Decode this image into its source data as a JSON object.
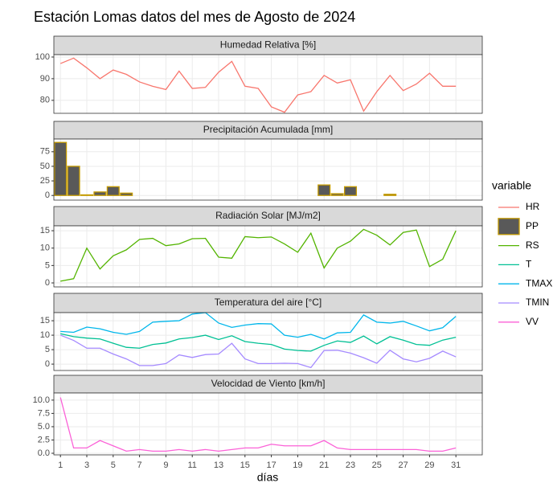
{
  "title": "Estación Lomas datos del mes de Agosto de 2024",
  "xlabel": "días",
  "legend_title": "variable",
  "chart_data": [
    {
      "type": "line",
      "title": "Humedad Relativa [%]",
      "x": [
        1,
        2,
        3,
        4,
        5,
        6,
        7,
        8,
        9,
        10,
        11,
        12,
        13,
        14,
        15,
        16,
        17,
        18,
        19,
        20,
        21,
        22,
        23,
        24,
        25,
        26,
        27,
        28,
        29,
        30,
        31
      ],
      "xlim": [
        0.5,
        33
      ],
      "ylim": [
        74,
        101.1
      ],
      "yticks": [
        80,
        90,
        100
      ],
      "series": [
        {
          "name": "HR",
          "color": "#F8766D",
          "values": [
            97,
            99.5,
            95,
            90,
            94,
            92,
            88.5,
            86.5,
            85,
            93.5,
            85.5,
            86,
            93,
            98,
            86.5,
            85.5,
            77,
            74.5,
            82.5,
            84,
            91.5,
            88,
            89.5,
            75,
            84,
            91.5,
            84.5,
            87.5,
            92.5,
            86.5,
            86.5
          ]
        }
      ]
    },
    {
      "type": "bar",
      "title": "Precipitación Acumulada [mm]",
      "x": [
        1,
        2,
        3,
        4,
        5,
        6,
        7,
        8,
        9,
        10,
        11,
        12,
        13,
        14,
        15,
        16,
        17,
        18,
        19,
        20,
        21,
        22,
        23,
        24,
        25,
        26,
        27,
        28,
        29,
        30,
        31
      ],
      "xlim": [
        0.5,
        33
      ],
      "ylim": [
        -8,
        96.8
      ],
      "yticks": [
        0,
        25,
        50,
        75
      ],
      "series": [
        {
          "name": "PP",
          "color": "#C49A00",
          "values": [
            91,
            50,
            1,
            6,
            15,
            4,
            0,
            0,
            0,
            0,
            0,
            0,
            0,
            0,
            0,
            0,
            0,
            0,
            0,
            0,
            18,
            3,
            15,
            0,
            0,
            2,
            0,
            0,
            0,
            0,
            0
          ]
        }
      ]
    },
    {
      "type": "line",
      "title": "Radiación Solar [MJ/m2]",
      "x": [
        1,
        2,
        3,
        4,
        5,
        6,
        7,
        8,
        9,
        10,
        11,
        12,
        13,
        14,
        15,
        16,
        17,
        18,
        19,
        20,
        21,
        22,
        23,
        24,
        25,
        26,
        27,
        28,
        29,
        30,
        31
      ],
      "xlim": [
        0.5,
        33
      ],
      "ylim": [
        -1.15,
        16.4
      ],
      "yticks": [
        0,
        5,
        10,
        15
      ],
      "series": [
        {
          "name": "RS",
          "color": "#53B400",
          "values": [
            0.5,
            1.2,
            10,
            4,
            7.8,
            9.5,
            12.5,
            12.8,
            10.7,
            11.2,
            12.7,
            12.8,
            7.4,
            7.1,
            13.3,
            13,
            13.2,
            11.2,
            8.8,
            14.3,
            4.3,
            10,
            12,
            15.4,
            13.7,
            10.9,
            14.5,
            15.2,
            4.7,
            6.8,
            15
          ]
        }
      ]
    },
    {
      "type": "line",
      "title": "Temperatura del aire [°C]",
      "x": [
        1,
        2,
        3,
        4,
        5,
        6,
        7,
        8,
        9,
        10,
        11,
        12,
        13,
        14,
        15,
        16,
        17,
        18,
        19,
        20,
        21,
        22,
        23,
        24,
        25,
        26,
        27,
        28,
        29,
        30,
        31
      ],
      "xlim": [
        0.5,
        33
      ],
      "ylim": [
        -2.2,
        17.8
      ],
      "yticks": [
        0,
        5,
        10,
        15
      ],
      "series": [
        {
          "name": "T",
          "color": "#00C094",
          "values": [
            10.5,
            9.5,
            9,
            8.7,
            7.2,
            5.8,
            5.5,
            6.8,
            7.3,
            8.7,
            9.2,
            10,
            8.5,
            9.8,
            7.8,
            7.2,
            6.8,
            5.2,
            4.7,
            4.5,
            6.5,
            8,
            7.5,
            9.7,
            7,
            9.5,
            8.3,
            6.8,
            6.5,
            8.3,
            9.3
          ]
        },
        {
          "name": "TMAX",
          "color": "#00B6EB",
          "values": [
            11.3,
            11,
            12.8,
            12.2,
            11,
            10.3,
            11.3,
            14.5,
            14.8,
            15,
            17.3,
            17.8,
            14.2,
            12.7,
            13.5,
            14,
            13.9,
            10,
            9.3,
            10.3,
            8.7,
            10.8,
            11,
            17,
            14.5,
            14.2,
            14.8,
            13.2,
            11.5,
            12.6,
            16.5
          ]
        },
        {
          "name": "TMIN",
          "color": "#A58AFF",
          "values": [
            10,
            8.2,
            5.5,
            5.5,
            3.5,
            1.8,
            -0.5,
            -0.5,
            0.2,
            3.2,
            2.3,
            3.3,
            3.5,
            7.2,
            1.8,
            0.2,
            0.2,
            0.3,
            0.2,
            -1.2,
            4.7,
            4.8,
            3.8,
            2.2,
            0.3,
            4.8,
            1.8,
            0.8,
            2,
            4.5,
            2.5
          ]
        }
      ]
    },
    {
      "type": "line",
      "title": "Velocidad de Viento [km/h]",
      "x": [
        1,
        2,
        3,
        4,
        5,
        6,
        7,
        8,
        9,
        10,
        11,
        12,
        13,
        14,
        15,
        16,
        17,
        18,
        19,
        20,
        21,
        22,
        23,
        24,
        25,
        26,
        27,
        28,
        29,
        30,
        31
      ],
      "xlim": [
        0.5,
        33
      ],
      "xticks": [
        1,
        3,
        5,
        7,
        9,
        11,
        13,
        15,
        17,
        19,
        21,
        23,
        25,
        27,
        29,
        31
      ],
      "ylim": [
        -0.3,
        11.34
      ],
      "yticks": [
        {
          "value": 0,
          "label": "0.0"
        },
        {
          "value": 2.5,
          "label": "2.5"
        },
        {
          "value": 5,
          "label": "5.0"
        },
        {
          "value": 7.5,
          "label": "7.5"
        },
        {
          "value": 10,
          "label": "10.0"
        }
      ],
      "series": [
        {
          "name": "VV",
          "color": "#FB61D7",
          "values": [
            10.5,
            1,
            1,
            2.4,
            1.4,
            0.4,
            0.7,
            0.4,
            0.4,
            0.7,
            0.4,
            0.7,
            0.4,
            0.7,
            1,
            1,
            1.7,
            1.4,
            1.4,
            1.4,
            2.4,
            1,
            0.7,
            0.7,
            0.7,
            0.7,
            0.7,
            0.7,
            0.4,
            0.4,
            1
          ]
        }
      ]
    }
  ]
}
